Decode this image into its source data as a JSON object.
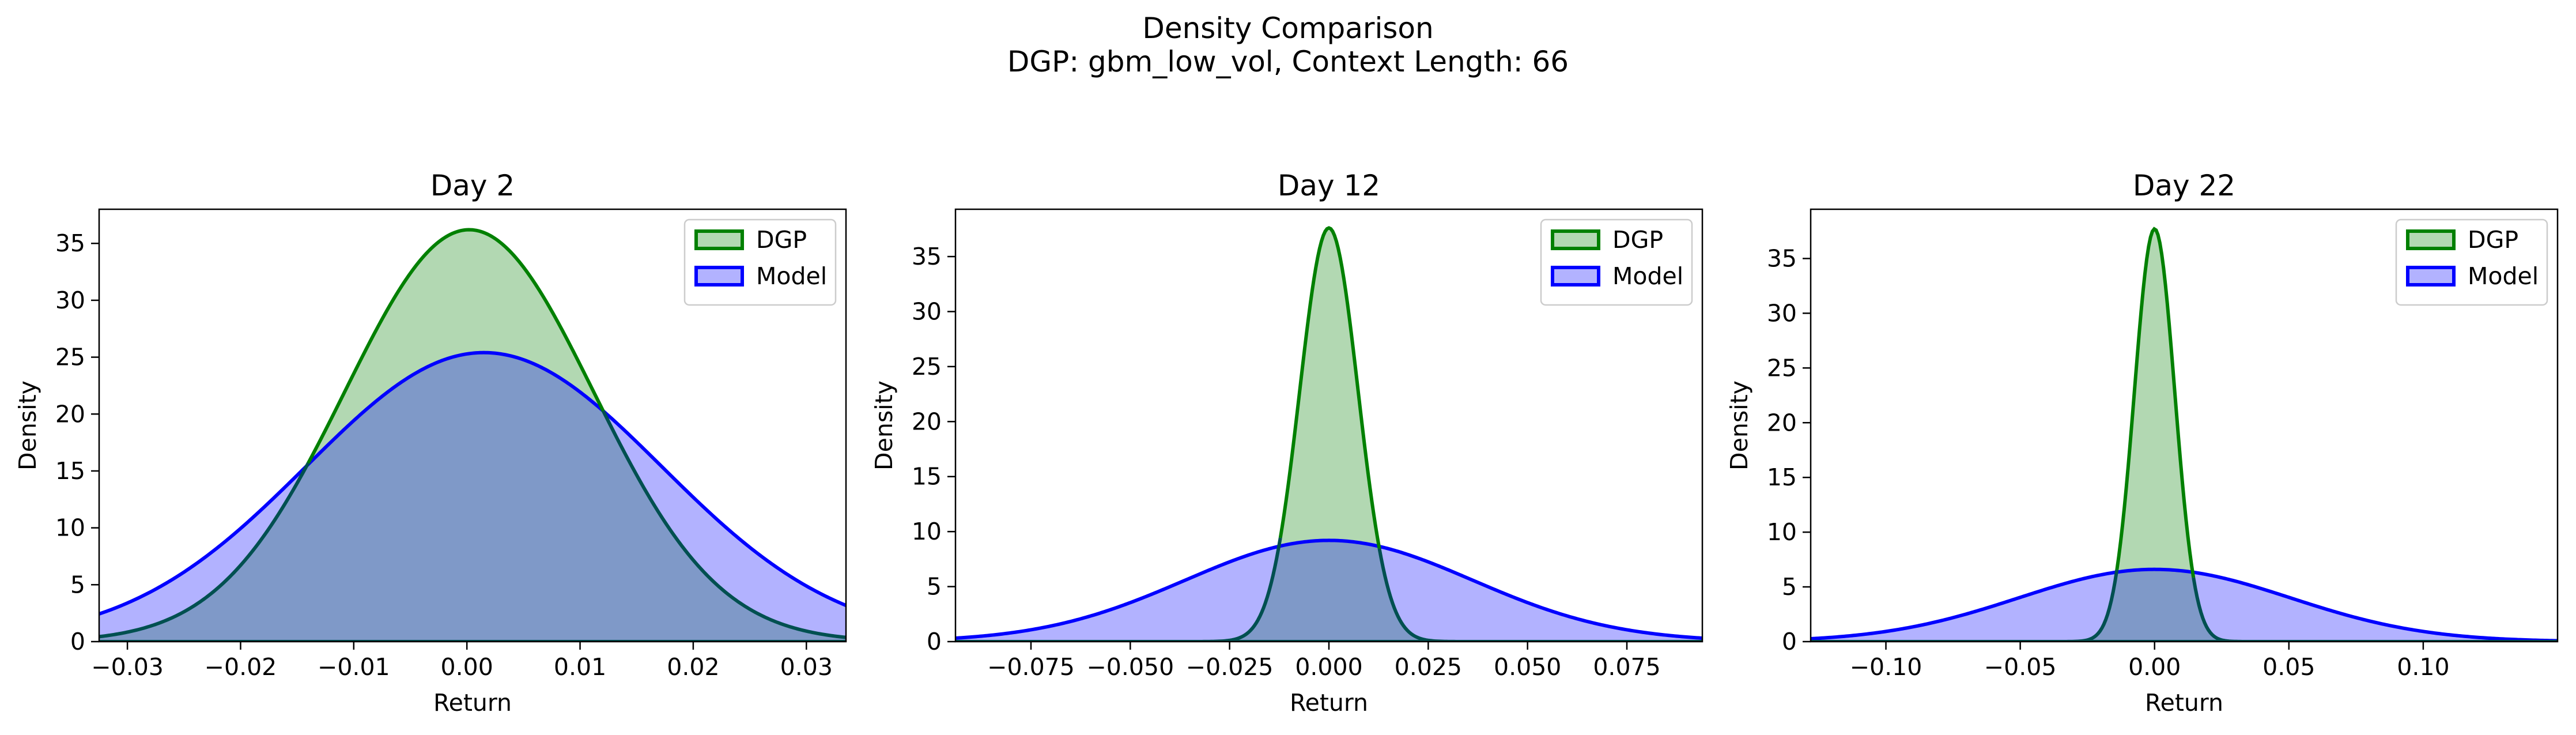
{
  "figure": {
    "title_line1": "Density Comparison",
    "title_line2": "DGP: gbm_low_vol, Context Length: 66"
  },
  "colors": {
    "dgp_line": "#008000",
    "dgp_fill": "#b2d8b2",
    "model_line": "#0000ff",
    "model_fill": "#b2b2ff",
    "overlap_fill": "#7f99c8",
    "overlap_line": "#005050"
  },
  "chart_data": [
    {
      "type": "area",
      "title": "Day 2",
      "xlabel": "Return",
      "ylabel": "Density",
      "xlim": [
        -0.0325,
        0.0335
      ],
      "ylim": [
        0,
        38
      ],
      "xticks": [
        -0.03,
        -0.02,
        -0.01,
        0.0,
        0.01,
        0.02,
        0.03
      ],
      "xtick_labels": [
        "−0.03",
        "−0.02",
        "−0.01",
        "0.00",
        "0.01",
        "0.02",
        "0.03"
      ],
      "yticks": [
        0,
        5,
        10,
        15,
        20,
        25,
        30,
        35
      ],
      "ytick_labels": [
        "0",
        "5",
        "10",
        "15",
        "20",
        "25",
        "30",
        "35"
      ],
      "legend": "top-right",
      "series": [
        {
          "name": "DGP",
          "mean": 0.0002,
          "sd": 0.011,
          "peak": 36.2
        },
        {
          "name": "Model",
          "mean": 0.0015,
          "sd": 0.0157,
          "peak": 25.4
        }
      ]
    },
    {
      "type": "area",
      "title": "Day 12",
      "xlabel": "Return",
      "ylabel": "Density",
      "xlim": [
        -0.094,
        0.094
      ],
      "ylim": [
        0,
        39.3
      ],
      "xticks": [
        -0.075,
        -0.05,
        -0.025,
        0.0,
        0.025,
        0.05,
        0.075
      ],
      "xtick_labels": [
        "−0.075",
        "−0.050",
        "−0.025",
        "0.000",
        "0.025",
        "0.050",
        "0.075"
      ],
      "yticks": [
        0,
        5,
        10,
        15,
        20,
        25,
        30,
        35
      ],
      "ytick_labels": [
        "0",
        "5",
        "10",
        "15",
        "20",
        "25",
        "30",
        "35"
      ],
      "legend": "top-right",
      "series": [
        {
          "name": "DGP",
          "mean": 0.0,
          "sd": 0.00735,
          "peak": 37.6
        },
        {
          "name": "Model",
          "mean": 0.0,
          "sd": 0.0362,
          "peak": 9.2
        }
      ]
    },
    {
      "type": "area",
      "title": "Day 22",
      "xlabel": "Return",
      "ylabel": "Density",
      "xlim": [
        -0.128,
        0.15
      ],
      "ylim": [
        0,
        39.5
      ],
      "xticks": [
        -0.1,
        -0.05,
        0.0,
        0.05,
        0.1
      ],
      "xtick_labels": [
        "−0.10",
        "−0.05",
        "0.00",
        "0.05",
        "0.10"
      ],
      "yticks": [
        0,
        5,
        10,
        15,
        20,
        25,
        30,
        35
      ],
      "ytick_labels": [
        "0",
        "5",
        "10",
        "15",
        "20",
        "25",
        "30",
        "35"
      ],
      "legend": "top-right",
      "series": [
        {
          "name": "DGP",
          "mean": 0.0,
          "sd": 0.0075,
          "peak": 37.7
        },
        {
          "name": "Model",
          "mean": 0.0,
          "sd": 0.0505,
          "peak": 6.6
        }
      ]
    }
  ]
}
